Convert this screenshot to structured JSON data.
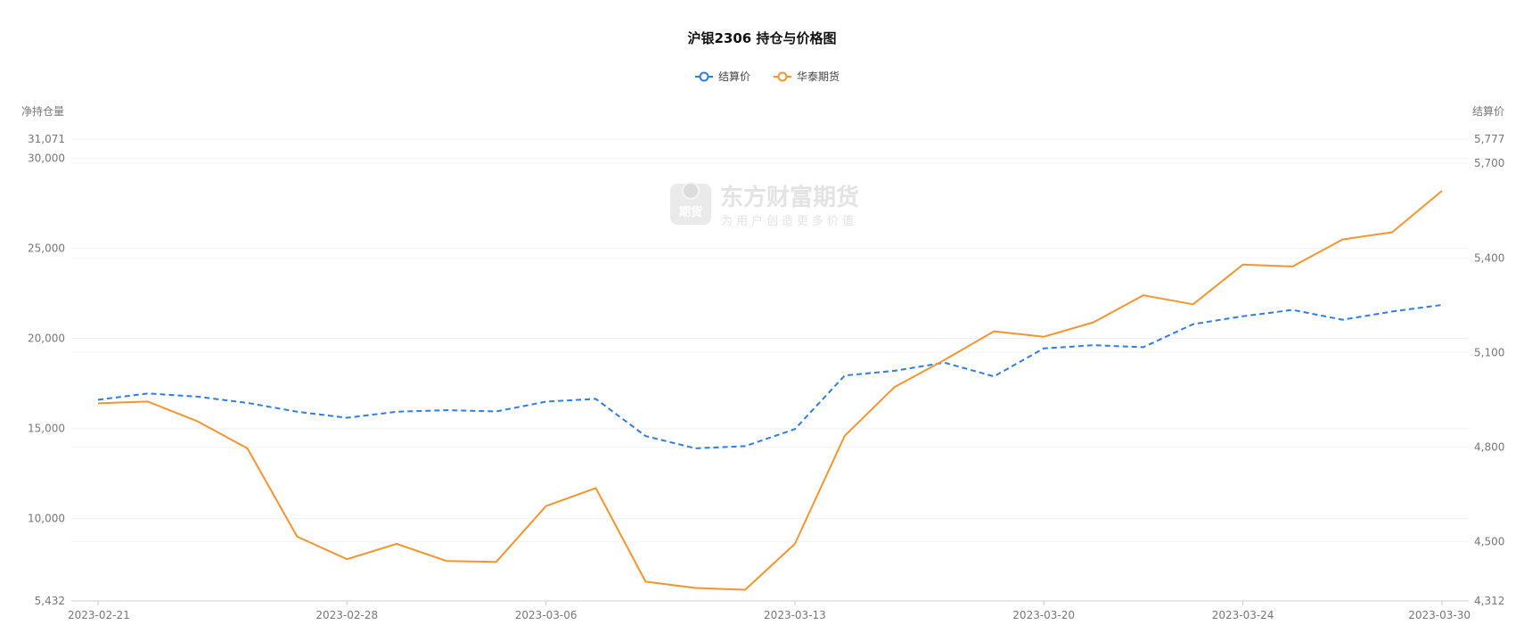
{
  "watermark": {
    "badge": "期货",
    "name": "东方财富期货",
    "slogan": "为用户创造更多价值"
  },
  "chart_data": {
    "type": "line",
    "title": "沪银2306 持仓与价格图",
    "left_axis": {
      "label": "净持仓量",
      "range": [
        5432,
        31071
      ],
      "ticks": [
        5432,
        10000,
        15000,
        20000,
        25000,
        30000,
        31071
      ],
      "tick_labels": [
        "5,432",
        "10,000",
        "15,000",
        "20,000",
        "25,000",
        "30,000",
        "31,071"
      ]
    },
    "right_axis": {
      "label": "结算价",
      "range": [
        4312,
        5777
      ],
      "ticks": [
        4312,
        4500,
        4800,
        5100,
        5400,
        5700,
        5777
      ],
      "tick_labels": [
        "4,312",
        "4,500",
        "4,800",
        "5,100",
        "5,400",
        "5,700",
        "5,777"
      ]
    },
    "x": [
      "2023-02-21",
      "2023-02-22",
      "2023-02-23",
      "2023-02-24",
      "2023-02-27",
      "2023-02-28",
      "2023-03-01",
      "2023-03-02",
      "2023-03-03",
      "2023-03-06",
      "2023-03-07",
      "2023-03-08",
      "2023-03-09",
      "2023-03-10",
      "2023-03-13",
      "2023-03-14",
      "2023-03-15",
      "2023-03-16",
      "2023-03-17",
      "2023-03-20",
      "2023-03-21",
      "2023-03-22",
      "2023-03-23",
      "2023-03-24",
      "2023-03-27",
      "2023-03-28",
      "2023-03-29",
      "2023-03-30"
    ],
    "x_tick_labels": [
      "2023-02-21",
      "2023-02-28",
      "2023-03-06",
      "2023-03-13",
      "2023-03-20",
      "2023-03-24",
      "2023-03-30"
    ],
    "series": [
      {
        "name": "结算价",
        "axis": "right",
        "color": "#2f7ee0",
        "dashed": true,
        "values": [
          4950,
          4970,
          4960,
          4940,
          4912,
          4893,
          4912,
          4917,
          4913,
          4944,
          4953,
          4835,
          4796,
          4803,
          4857,
          5027,
          5042,
          5068,
          5024,
          5113,
          5123,
          5117,
          5190,
          5215,
          5235,
          5204,
          5230,
          5251
        ]
      },
      {
        "name": "华泰期货",
        "axis": "left",
        "color": "#f7942f",
        "dashed": false,
        "values": [
          16400,
          16500,
          15400,
          13900,
          9000,
          7750,
          8600,
          7650,
          7600,
          10700,
          11700,
          6500,
          6150,
          6050,
          8600,
          14600,
          17300,
          18800,
          20400,
          20100,
          20900,
          22400,
          21900,
          24100,
          24000,
          25500,
          25900,
          28200
        ]
      }
    ],
    "legend_position": "top-center",
    "grid": true
  }
}
